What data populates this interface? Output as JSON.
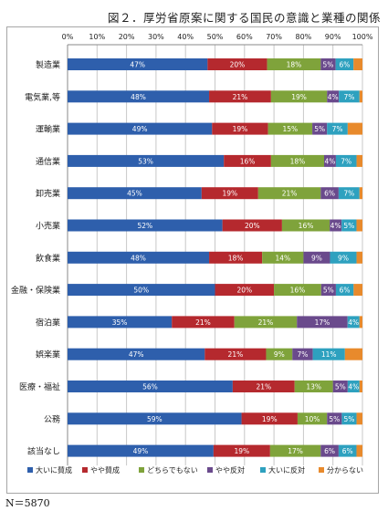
{
  "title": "図２．厚労省原案に関する国民の意識と業種の関係",
  "sample_size": "N＝5870",
  "chart_data": {
    "type": "bar",
    "orientation": "horizontal",
    "stacked": "percent",
    "title": "図２．厚労省原案に関する国民の意識と業種の関係",
    "xlim": [
      0,
      100
    ],
    "x_ticks": [
      "0%",
      "10%",
      "20%",
      "30%",
      "40%",
      "50%",
      "60%",
      "70%",
      "80%",
      "90%",
      "100%"
    ],
    "grid": true,
    "legend_position": "bottom",
    "categories": [
      "製造業",
      "電気業,等",
      "運輸業",
      "通信業",
      "卸売業",
      "小売業",
      "飲食業",
      "金融・保険業",
      "宿泊業",
      "娯楽業",
      "医療・福祉",
      "公務",
      "該当なし"
    ],
    "series": [
      {
        "name": "大いに賛成",
        "color": "#2e5fac",
        "label_color": "#ffffff",
        "values": [
          47,
          48,
          49,
          53,
          45,
          52,
          48,
          50,
          35,
          47,
          56,
          59,
          49
        ]
      },
      {
        "name": "やや賛成",
        "color": "#b5292e",
        "label_color": "#ffffff",
        "values": [
          20,
          21,
          19,
          16,
          19,
          20,
          18,
          20,
          21,
          21,
          21,
          19,
          19
        ]
      },
      {
        "name": "どちらでもない",
        "color": "#7fa33b",
        "label_color": "#ffffff",
        "values": [
          18,
          19,
          15,
          18,
          21,
          16,
          14,
          16,
          21,
          9,
          13,
          10,
          17
        ]
      },
      {
        "name": "やや反対",
        "color": "#6a4a8c",
        "label_color": "#ffffff",
        "values": [
          5,
          4,
          5,
          4,
          6,
          4,
          9,
          5,
          17,
          7,
          5,
          5,
          6
        ]
      },
      {
        "name": "大いに反対",
        "color": "#2ea1bf",
        "label_color": "#ffffff",
        "values": [
          6,
          7,
          7,
          7,
          7,
          5,
          9,
          6,
          4,
          11,
          4,
          5,
          6
        ]
      },
      {
        "name": "分からない",
        "color": "#e88a2c",
        "label_color": "#ffffff",
        "values": [
          3,
          1,
          5,
          2,
          1,
          2,
          2,
          3,
          1,
          6,
          1,
          2,
          2
        ]
      }
    ]
  }
}
